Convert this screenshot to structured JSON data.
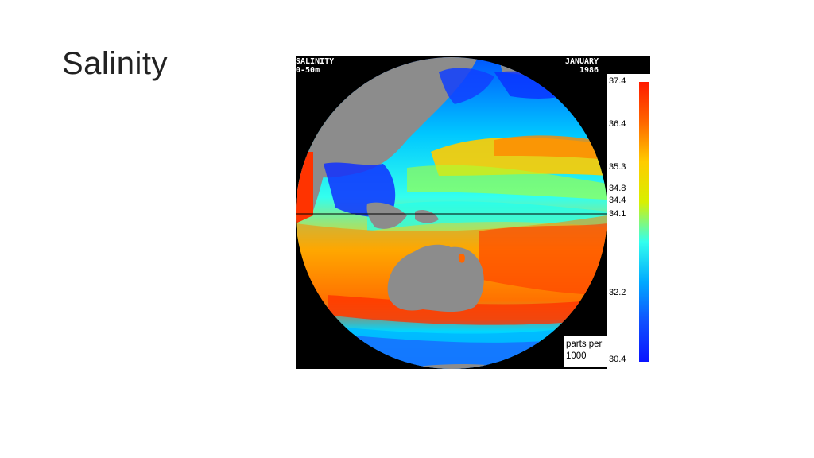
{
  "slide": {
    "title": "Salinity"
  },
  "figure": {
    "variable": "SALINITY",
    "depth": "0-50m",
    "month": "JANUARY",
    "year": "1986"
  },
  "legend": {
    "units_line1": "parts per",
    "units_line2": "1000",
    "ticks": [
      "37.4",
      "36.4",
      "35.3",
      "34.8",
      "34.4",
      "34.1",
      "32.2",
      "30.4"
    ],
    "colors": [
      "#ff1a00",
      "#ff6600",
      "#ffcc00",
      "#d8f000",
      "#33ffee",
      "#00aaff",
      "#1050ff",
      "#0a14ff"
    ]
  }
}
